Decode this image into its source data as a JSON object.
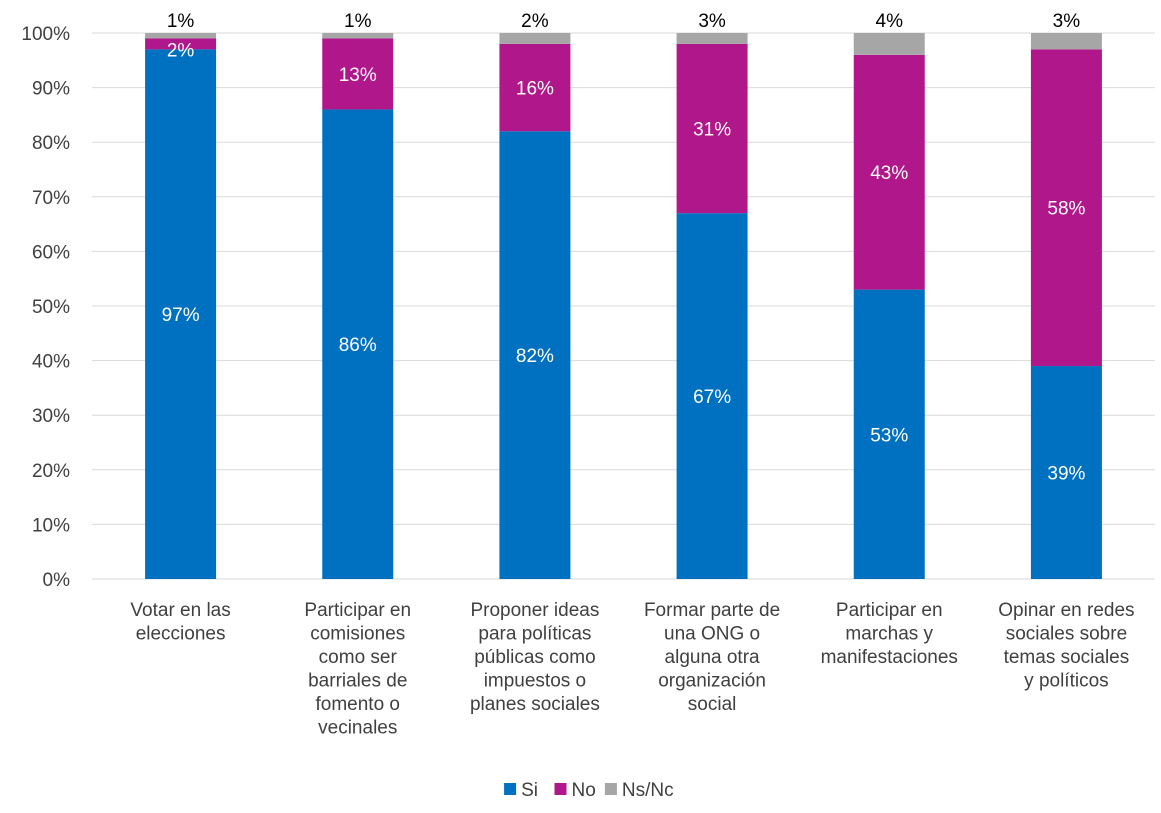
{
  "chart_data": {
    "type": "bar",
    "stacked": true,
    "categories": [
      [
        "Votar en las",
        "elecciones"
      ],
      [
        "Participar en",
        "comisiones",
        "como ser",
        "barriales de",
        "fomento o",
        "vecinales"
      ],
      [
        "Proponer ideas",
        "para políticas",
        "públicas como",
        "impuestos o",
        "planes sociales"
      ],
      [
        "Formar parte de",
        "una ONG o",
        "alguna otra",
        "organización",
        "social"
      ],
      [
        "Participar en",
        "marchas y",
        "manifestaciones"
      ],
      [
        "Opinar en redes",
        "sociales sobre",
        "temas sociales",
        "y políticos"
      ]
    ],
    "series": [
      {
        "name": "Si",
        "color": "#0070C0",
        "values": [
          97,
          86,
          82,
          67,
          53,
          39
        ],
        "labels": [
          "97%",
          "86%",
          "82%",
          "67%",
          "53%",
          "39%"
        ],
        "label_color": "#ffffff"
      },
      {
        "name": "No",
        "color": "#B0178A",
        "values": [
          2,
          13,
          16,
          31,
          43,
          58
        ],
        "labels": [
          "2%",
          "13%",
          "16%",
          "31%",
          "43%",
          "58%"
        ],
        "label_color": "#ffffff"
      },
      {
        "name": "Ns/Nc",
        "color": "#A6A6A6",
        "values": [
          1,
          1,
          2,
          3,
          4,
          3
        ],
        "labels": [
          "1%",
          "1%",
          "2%",
          "3%",
          "4%",
          "3%"
        ],
        "label_color": "#000000"
      }
    ],
    "ylim": [
      0,
      100
    ],
    "yticks": [
      "0%",
      "10%",
      "20%",
      "30%",
      "40%",
      "50%",
      "60%",
      "70%",
      "80%",
      "90%",
      "100%"
    ],
    "grid": true,
    "legend_position": "bottom",
    "gridline_color": "#D9D9D9",
    "axis_color": "#D9D9D9"
  }
}
